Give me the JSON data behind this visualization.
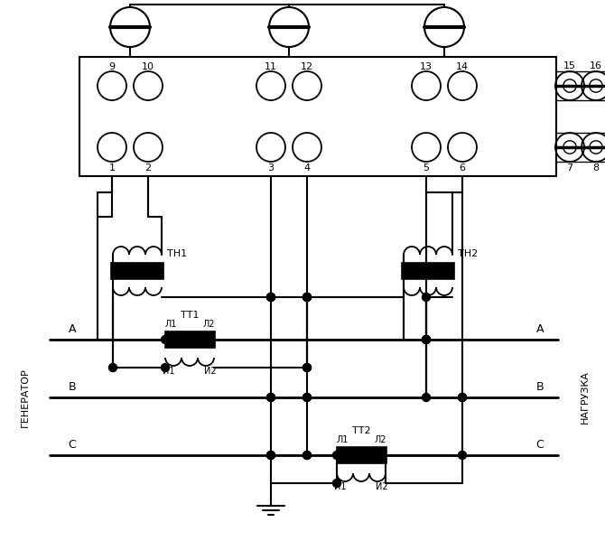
{
  "bg": "#ffffff",
  "lc": "#000000",
  "label_gen": "ГЕНЕРАТОР",
  "label_load": "НАГРУЗКА",
  "label_TH1": "ТН1",
  "label_TH2": "ТН2",
  "label_TT1": "ТТ1",
  "label_TT2": "ТТ2",
  "label_L1_1": "Л1",
  "label_L2_1": "Л2",
  "label_I1_1": "И1",
  "label_I2_1": "И2",
  "label_L1_2": "Л1",
  "label_L2_2": "Л2",
  "label_I1_2": "И1",
  "label_I2_2": "И2",
  "up_nums": [
    "9",
    "10",
    "11",
    "12",
    "13",
    "14",
    "15",
    "16"
  ],
  "lo_nums": [
    "1",
    "2",
    "3",
    "4",
    "5",
    "6",
    "7",
    "8"
  ]
}
